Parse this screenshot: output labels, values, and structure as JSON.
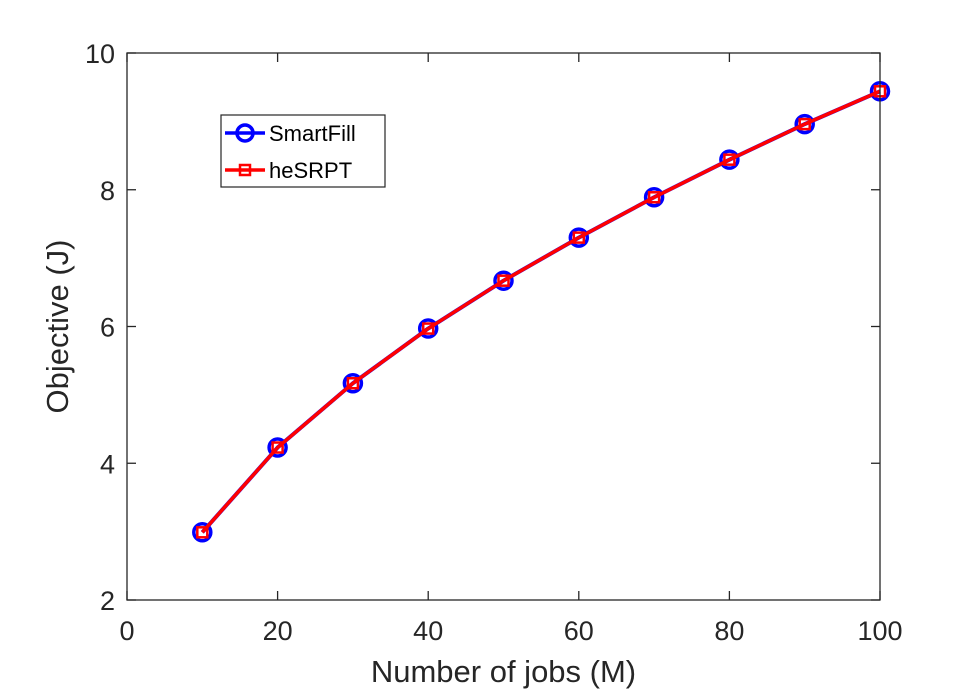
{
  "colors": {
    "background": "#ffffff",
    "axis": "#262626",
    "smartfill": "#0000ff",
    "hesrpt": "#ff0000"
  },
  "chart_data": {
    "type": "line",
    "title": "",
    "xlabel": "Number of jobs (M)",
    "ylabel": "Objective (J)",
    "xlim": [
      0,
      100
    ],
    "ylim": [
      2,
      10
    ],
    "xticks": [
      0,
      20,
      40,
      60,
      80,
      100
    ],
    "yticks": [
      2,
      4,
      6,
      8,
      10
    ],
    "xtick_labels": [
      "0",
      "20",
      "40",
      "60",
      "80",
      "100"
    ],
    "ytick_labels": [
      "2",
      "4",
      "6",
      "8",
      "10"
    ],
    "grid": false,
    "legend_position": "top-left",
    "x": [
      10,
      20,
      30,
      40,
      50,
      60,
      70,
      80,
      90,
      100
    ],
    "series": [
      {
        "name": "SmartFill",
        "color": "#0000ff",
        "marker": "circle",
        "values": [
          2.99,
          4.23,
          5.17,
          5.97,
          6.67,
          7.3,
          7.89,
          8.44,
          8.96,
          9.44
        ]
      },
      {
        "name": "heSRPT",
        "color": "#ff0000",
        "marker": "square",
        "values": [
          2.99,
          4.23,
          5.17,
          5.97,
          6.67,
          7.3,
          7.89,
          8.44,
          8.96,
          9.44
        ]
      }
    ]
  }
}
